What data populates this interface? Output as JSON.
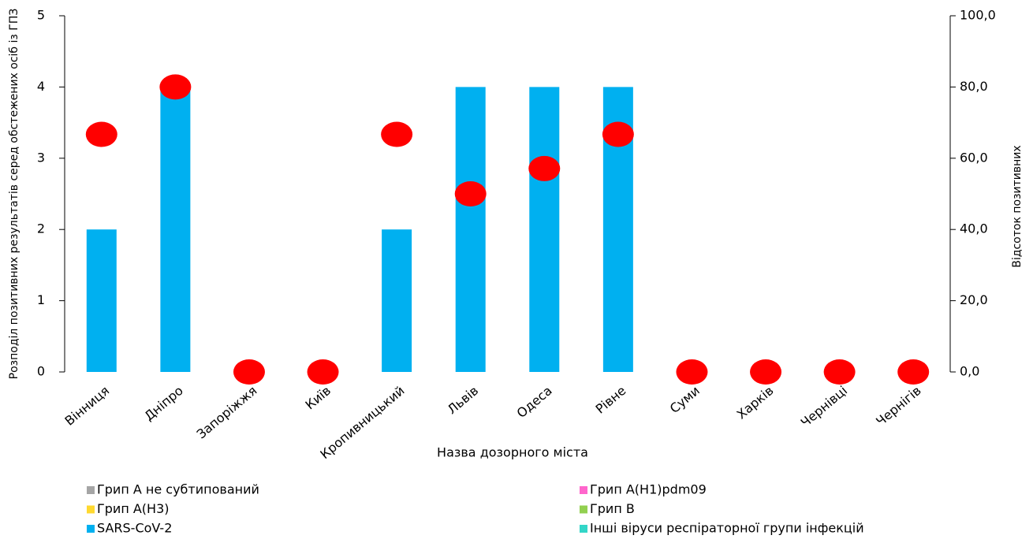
{
  "chart_data": {
    "type": "bar",
    "categories": [
      "Вінниця",
      "Дніпро",
      "Запоріжжя",
      "Київ",
      "Кропивницький",
      "Львів",
      "Одеса",
      "Рівне",
      "Суми",
      "Харків",
      "Чернівці",
      "Чернігів"
    ],
    "series": [
      {
        "name": "Грип A не субтипований",
        "color": "#a5a5a5",
        "values": [
          0,
          0,
          0,
          0,
          0,
          0,
          0,
          0,
          0,
          0,
          0,
          0
        ]
      },
      {
        "name": "Грип A(H1)pdm09",
        "color": "#ff66cc",
        "values": [
          0,
          0,
          0,
          0,
          0,
          0,
          0,
          0,
          0,
          0,
          0,
          0
        ]
      },
      {
        "name": "Грип A(H3)",
        "color": "#ffd92f",
        "values": [
          0,
          0,
          0,
          0,
          0,
          0,
          0,
          0,
          0,
          0,
          0,
          0
        ]
      },
      {
        "name": "Грип B",
        "color": "#92d050",
        "values": [
          0,
          0,
          0,
          0,
          0,
          0,
          0,
          0,
          0,
          0,
          0,
          0
        ]
      },
      {
        "name": "SARS-CoV-2",
        "color": "#00b0f0",
        "values": [
          2,
          4,
          0,
          0,
          2,
          4,
          4,
          4,
          0,
          0,
          0,
          0
        ]
      },
      {
        "name": "Інші віруси респіраторної групи інфекцій",
        "color": "#33d6c8",
        "values": [
          0,
          0,
          0,
          0,
          0,
          0,
          0,
          0,
          0,
          0,
          0,
          0
        ]
      },
      {
        "type": "scatter",
        "axis": "y2",
        "color": "#ff0000",
        "values": [
          66.7,
          80,
          0,
          0,
          66.7,
          50,
          57.1,
          66.7,
          0,
          0,
          0,
          0
        ]
      }
    ],
    "x_label": "Назва  дозорного міста",
    "y_label": "Розподіл позитивних результатів серед обстежених осіб із ГПЗ",
    "y2_label": "Відсоток позитивних",
    "ylim": [
      0,
      5
    ],
    "yticks": [
      0,
      1,
      2,
      3,
      4,
      5
    ],
    "y2lim": [
      0,
      100
    ],
    "y2ticks": [
      {
        "value": 0,
        "label": "0,0"
      },
      {
        "value": 20,
        "label": "20,0"
      },
      {
        "value": 40,
        "label": "40,0"
      },
      {
        "value": 60,
        "label": "60,0"
      },
      {
        "value": 80,
        "label": "80,0"
      },
      {
        "value": 100,
        "label": "100,0"
      }
    ],
    "stacked": true
  }
}
